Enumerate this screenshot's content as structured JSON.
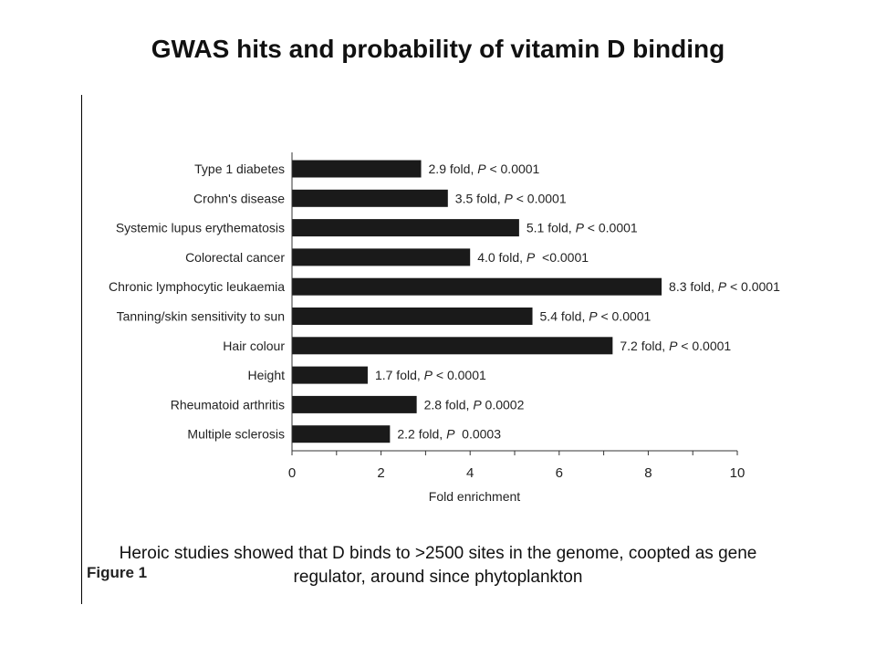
{
  "slide": {
    "title": "GWAS hits and probability of vitamin D binding",
    "caption_line1": "Heroic studies  showed that D binds to >2500 sites in the genome, coopted as gene",
    "caption_line2": "regulator, around since phytoplankton",
    "figure_label": "Figure 1"
  },
  "chart_data": {
    "type": "bar",
    "orientation": "horizontal",
    "title": "",
    "xlabel": "Fold enrichment",
    "ylabel": "",
    "xlim": [
      0,
      10
    ],
    "xticks": [
      0,
      2,
      4,
      6,
      8,
      10
    ],
    "grid": false,
    "bar_color": "#1a1a1a",
    "categories": [
      "Type 1 diabetes",
      "Crohn's disease",
      "Systemic lupus erythematosis",
      "Colorectal cancer",
      "Chronic lymphocytic leukaemia",
      "Tanning/skin sensitivity to sun",
      "Hair colour",
      "Height",
      "Rheumatoid arthritis",
      "Multiple sclerosis"
    ],
    "values": [
      2.9,
      3.5,
      5.1,
      4.0,
      8.3,
      5.4,
      7.2,
      1.7,
      2.8,
      2.2
    ],
    "annotations": [
      {
        "fold": "2.9 fold, ",
        "p": "P",
        "rest": " < 0.0001"
      },
      {
        "fold": "3.5 fold, ",
        "p": "P",
        "rest": " < 0.0001"
      },
      {
        "fold": "5.1 fold, ",
        "p": "P",
        "rest": " < 0.0001"
      },
      {
        "fold": "4.0 fold, ",
        "p": "P",
        "rest": "  <0.0001"
      },
      {
        "fold": "8.3 fold, ",
        "p": "P",
        "rest": " < 0.0001"
      },
      {
        "fold": "5.4 fold, ",
        "p": "P",
        "rest": " < 0.0001"
      },
      {
        "fold": "7.2 fold, ",
        "p": "P",
        "rest": " < 0.0001"
      },
      {
        "fold": "1.7 fold, ",
        "p": "P",
        "rest": " < 0.0001"
      },
      {
        "fold": "2.8 fold, ",
        "p": "P",
        "rest": " 0.0002"
      },
      {
        "fold": "2.2 fold, ",
        "p": "P",
        "rest": "  0.0003"
      }
    ]
  }
}
